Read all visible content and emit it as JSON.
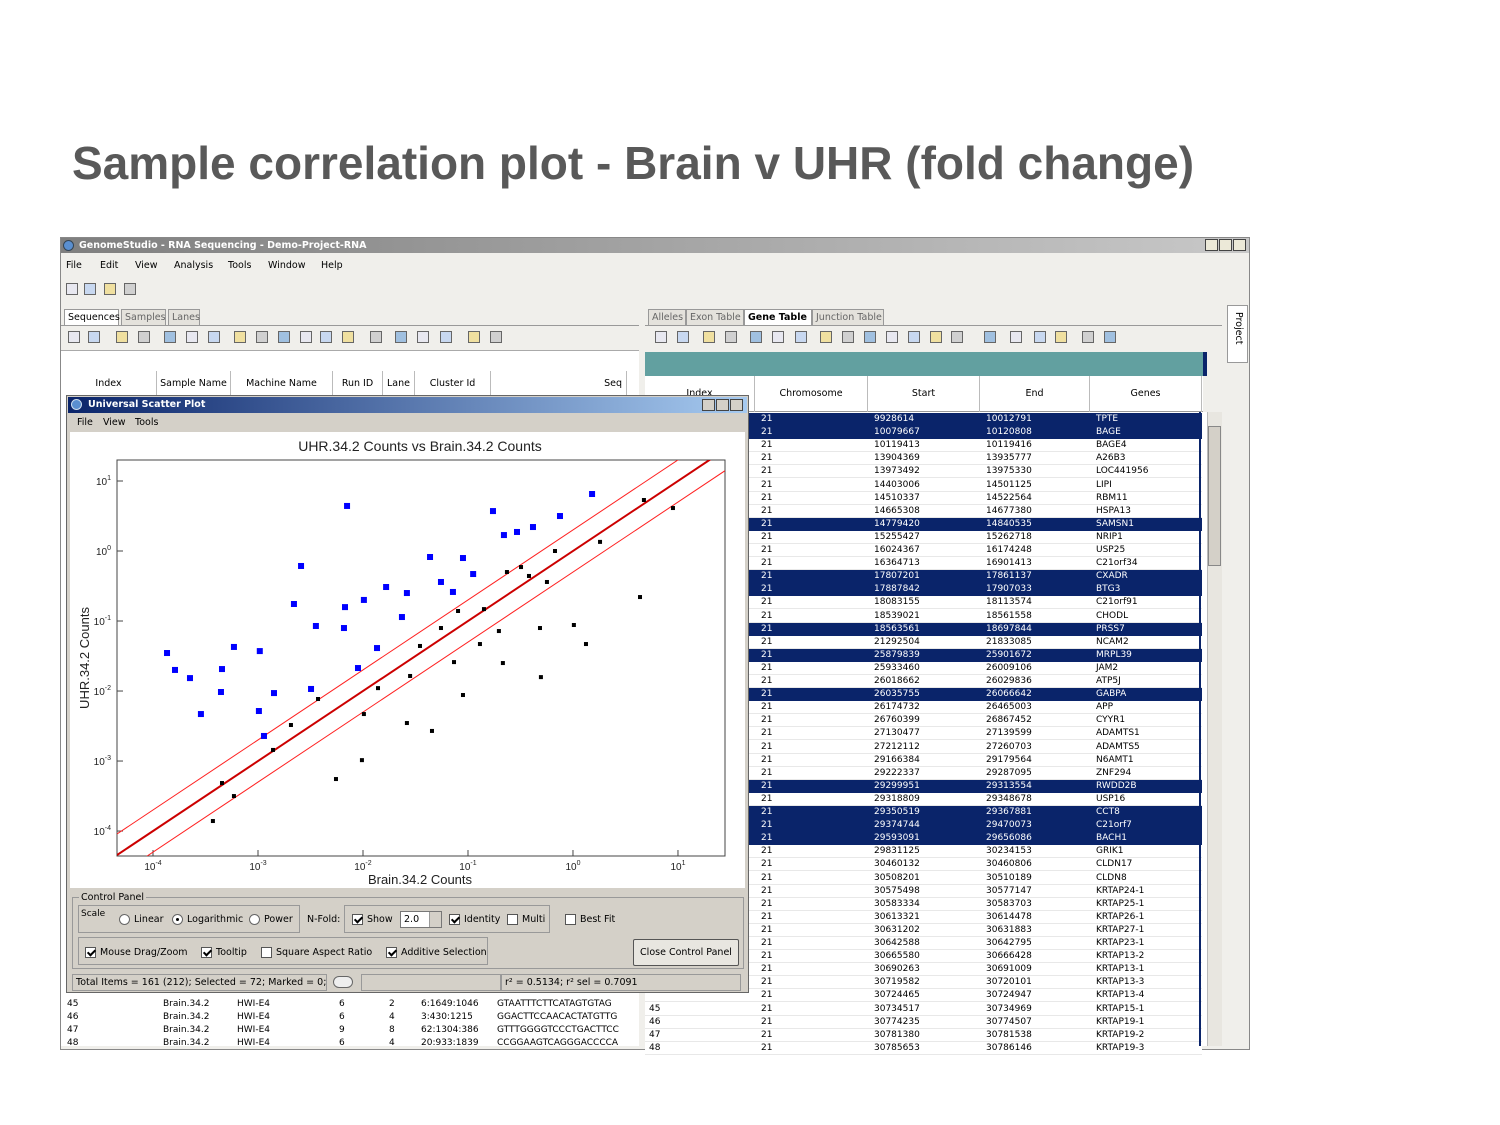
{
  "slide_title": "Sample correlation plot  - Brain v UHR (fold change)",
  "window": {
    "title": "GenomeStudio - RNA Sequencing - Demo-Project-RNA",
    "menu": [
      "File",
      "Edit",
      "View",
      "Analysis",
      "Tools",
      "Window",
      "Help"
    ],
    "side_tab": "Project"
  },
  "left_panel": {
    "tabs": [
      "Sequences",
      "Samples",
      "Lanes"
    ],
    "active_tab": 0,
    "headers": [
      "Index",
      "Sample Name",
      "Machine Name",
      "Run ID",
      "Lane",
      "Cluster Id",
      "Seq"
    ],
    "rows": [
      [
        45,
        "Brain.34.2",
        "HWI-E4",
        6,
        2,
        "6:1649:1046",
        "GTAATTTCTTCATAGTGTAG"
      ],
      [
        46,
        "Brain.34.2",
        "HWI-E4",
        6,
        4,
        "3:430:1215",
        "GGACTTCCAACACTATGTTG"
      ],
      [
        47,
        "Brain.34.2",
        "HWI-E4",
        9,
        8,
        "62:1304:386",
        "GTTTGGGGTCCCTGACTTCC"
      ],
      [
        48,
        "Brain.34.2",
        "HWI-E4",
        6,
        4,
        "20:933:1839",
        "CCGGAAGTCAGGGACCCCA"
      ]
    ]
  },
  "right_panel": {
    "tabs": [
      "Alleles",
      "Exon Table",
      "Gene Table",
      "Junction Table"
    ],
    "active_tab": 2,
    "headers": [
      "Index",
      "Chromosome",
      "Start",
      "End",
      "Genes"
    ],
    "rows": [
      [
        21,
        9928614,
        10012791,
        "TPTE"
      ],
      [
        21,
        10079667,
        10120808,
        "BAGE"
      ],
      [
        21,
        10119413,
        10119416,
        "BAGE4"
      ],
      [
        21,
        13904369,
        13935777,
        "A26B3"
      ],
      [
        21,
        13973492,
        13975330,
        "LOC441956"
      ],
      [
        21,
        14403006,
        14501125,
        "LIPI"
      ],
      [
        21,
        14510337,
        14522564,
        "RBM11"
      ],
      [
        21,
        14665308,
        14677380,
        "HSPA13"
      ],
      [
        21,
        14779420,
        14840535,
        "SAMSN1"
      ],
      [
        21,
        15255427,
        15262718,
        "NRIP1"
      ],
      [
        21,
        16024367,
        16174248,
        "USP25"
      ],
      [
        21,
        16364713,
        16901413,
        "C21orf34"
      ],
      [
        21,
        17807201,
        17861137,
        "CXADR"
      ],
      [
        21,
        17887842,
        17907033,
        "BTG3"
      ],
      [
        21,
        18083155,
        18113574,
        "C21orf91"
      ],
      [
        21,
        18539021,
        18561558,
        "CHODL"
      ],
      [
        21,
        18563561,
        18697844,
        "PRSS7"
      ],
      [
        21,
        21292504,
        21833085,
        "NCAM2"
      ],
      [
        21,
        25879839,
        25901672,
        "MRPL39"
      ],
      [
        21,
        25933460,
        26009106,
        "JAM2"
      ],
      [
        21,
        26018662,
        26029836,
        "ATP5J"
      ],
      [
        21,
        26035755,
        26066642,
        "GABPA"
      ],
      [
        21,
        26174732,
        26465003,
        "APP"
      ],
      [
        21,
        26760399,
        26867452,
        "CYYR1"
      ],
      [
        21,
        27130477,
        27139599,
        "ADAMTS1"
      ],
      [
        21,
        27212112,
        27260703,
        "ADAMTS5"
      ],
      [
        21,
        29166384,
        29179564,
        "N6AMT1"
      ],
      [
        21,
        29222337,
        29287095,
        "ZNF294"
      ],
      [
        21,
        29299951,
        29313554,
        "RWDD2B"
      ],
      [
        21,
        29318809,
        29348678,
        "USP16"
      ],
      [
        21,
        29350519,
        29367881,
        "CCT8"
      ],
      [
        21,
        29374744,
        29470073,
        "C21orf7"
      ],
      [
        21,
        29593091,
        29656086,
        "BACH1"
      ],
      [
        21,
        29831125,
        30234153,
        "GRIK1"
      ],
      [
        21,
        30460132,
        30460806,
        "CLDN17"
      ],
      [
        21,
        30508201,
        30510189,
        "CLDN8"
      ],
      [
        21,
        30575498,
        30577147,
        "KRTAP24-1"
      ],
      [
        21,
        30583334,
        30583703,
        "KRTAP25-1"
      ],
      [
        21,
        30613321,
        30614478,
        "KRTAP26-1"
      ],
      [
        21,
        30631202,
        30631883,
        "KRTAP27-1"
      ],
      [
        21,
        30642588,
        30642795,
        "KRTAP23-1"
      ],
      [
        21,
        30665580,
        30666428,
        "KRTAP13-2"
      ],
      [
        21,
        30690263,
        30691009,
        "KRTAP13-1"
      ],
      [
        21,
        30719582,
        30720101,
        "KRTAP13-3"
      ],
      [
        21,
        30724465,
        30724947,
        "KRTAP13-4"
      ],
      [
        21,
        30734517,
        30734969,
        "KRTAP15-1"
      ],
      [
        21,
        30774235,
        30774507,
        "KRTAP19-1"
      ],
      [
        21,
        30781380,
        30781538,
        "KRTAP19-2"
      ],
      [
        21,
        30785653,
        30786146,
        "KRTAP19-3"
      ]
    ],
    "row_indices": [
      45,
      46,
      47,
      48
    ],
    "selected_rows": [
      0,
      1,
      8,
      12,
      13,
      16,
      18,
      21,
      28,
      30,
      31,
      32
    ]
  },
  "scatter_window": {
    "title": "Universal Scatter Plot",
    "menu": [
      "File",
      "View",
      "Tools"
    ],
    "control_panel": {
      "title": "Control Panel",
      "scale_label": "Scale",
      "scale_options": [
        "Linear",
        "Logarithmic",
        "Power"
      ],
      "scale_selected": 1,
      "nfold_label": "N-Fold:",
      "show_label": "Show",
      "show_checked": true,
      "identity_label": "Identity",
      "identity_checked": true,
      "multi_label": "Multi",
      "multi_checked": false,
      "best_fit_label": "Best Fit",
      "best_fit_checked": false,
      "options": [
        {
          "label": "Mouse Drag/Zoom",
          "checked": true
        },
        {
          "label": "Tooltip",
          "checked": true
        },
        {
          "label": "Square Aspect Ratio",
          "checked": false
        },
        {
          "label": "Additive Selection",
          "checked": true
        }
      ],
      "close_button": "Close Control Panel"
    },
    "status": {
      "items": "Total Items = 161 (212); Selected = 72; Marked = 0;",
      "correlation": "r² = 0.5134; r² sel = 0.7091"
    }
  },
  "chart_data": {
    "type": "scatter",
    "title": "UHR.34.2 Counts vs Brain.34.2 Counts",
    "x_label": "Brain.34.2 Counts",
    "y_label": "UHR.34.2 Counts",
    "log_x": true,
    "log_y": true,
    "xlim": [
      4.54e-05,
      28.05
    ],
    "ylim": [
      4.4e-05,
      19.95
    ],
    "xticks": [
      {
        "value": 0.0001,
        "label": "10",
        "exponent": "-4"
      },
      {
        "value": 0.001,
        "label": "10",
        "exponent": "-3"
      },
      {
        "value": 0.01,
        "label": "10",
        "exponent": "-2"
      },
      {
        "value": 0.1,
        "label": "10",
        "exponent": "-1"
      },
      {
        "value": 1,
        "label": "10",
        "exponent": "0"
      },
      {
        "value": 10,
        "label": "10",
        "exponent": "1"
      }
    ],
    "yticks": [
      {
        "value": 0.0001,
        "label": "10",
        "exponent": "-4"
      },
      {
        "value": 0.001,
        "label": "10",
        "exponent": "-3"
      },
      {
        "value": 0.01,
        "label": "10",
        "exponent": "-2"
      },
      {
        "value": 0.1,
        "label": "10",
        "exponent": "-1"
      },
      {
        "value": 1,
        "label": "10",
        "exponent": "0"
      },
      {
        "value": 10,
        "label": "10",
        "exponent": "1"
      }
    ],
    "nfold": {
      "value": 2,
      "label": "2.0"
    },
    "identity_color": "#cc0000",
    "fold_color": "#ff2020",
    "series": [
      {
        "color": "#0000ff",
        "x": [
          0.000136,
          0.000162,
          0.000225,
          0.000286,
          0.000454,
          0.000444,
          0.00059,
          0.00104,
          0.00102,
          0.00114,
          0.00142,
          0.00257,
          0.0022,
          0.0032,
          0.00356,
          0.00705,
          0.00674,
          0.00659,
          0.00896,
          0.0102,
          0.0136,
          0.0166,
          0.0262,
          0.0435,
          0.0553,
          0.0896,
          0.112,
          0.173,
          0.22,
          0.293,
          0.416,
          0.752,
          1.52,
          0.0719,
          0.0235
        ],
        "values": [
          0.0349,
          0.02,
          0.0153,
          0.00469,
          0.0206,
          0.00968,
          0.0426,
          0.0372,
          0.00518,
          0.00228,
          0.00935,
          0.611,
          0.175,
          0.0107,
          0.0849,
          4.4,
          0.158,
          0.0794,
          0.0213,
          0.2,
          0.0411,
          0.306,
          0.251,
          0.821,
          0.361,
          0.794,
          0.469,
          3.72,
          1.69,
          1.87,
          2.2,
          3.16,
          6.52,
          0.26,
          0.114
        ]
      },
      {
        "color": "#000000",
        "x": [
          0.000372,
          0.000454,
          0.00059,
          0.00139,
          0.00206,
          0.00373,
          0.00553,
          0.00977,
          0.0102,
          0.0139,
          0.0262,
          0.0281,
          0.0349,
          0.0454,
          0.0553,
          0.0736,
          0.0896,
          0.0804,
          0.13,
          0.142,
          0.197,
          0.215,
          0.235,
          0.32,
          0.495,
          0.485,
          0.674,
          1.02,
          1.33,
          1.81,
          4.35,
          4.74,
          8.96,
          0.565,
          0.381
        ],
        "values": [
          0.000139,
          0.000485,
          0.000316,
          0.00144,
          0.00327,
          0.00769,
          0.000553,
          0.00103,
          0.00469,
          0.011,
          0.00349,
          0.0164,
          0.044,
          0.00269,
          0.0794,
          0.0259,
          0.00877,
          0.139,
          0.0469,
          0.148,
          0.0719,
          0.0251,
          0.501,
          0.59,
          0.0158,
          0.0794,
          1,
          0.0877,
          0.0469,
          1.35,
          0.22,
          5.35,
          4.11,
          0.361,
          0.44
        ]
      }
    ]
  }
}
